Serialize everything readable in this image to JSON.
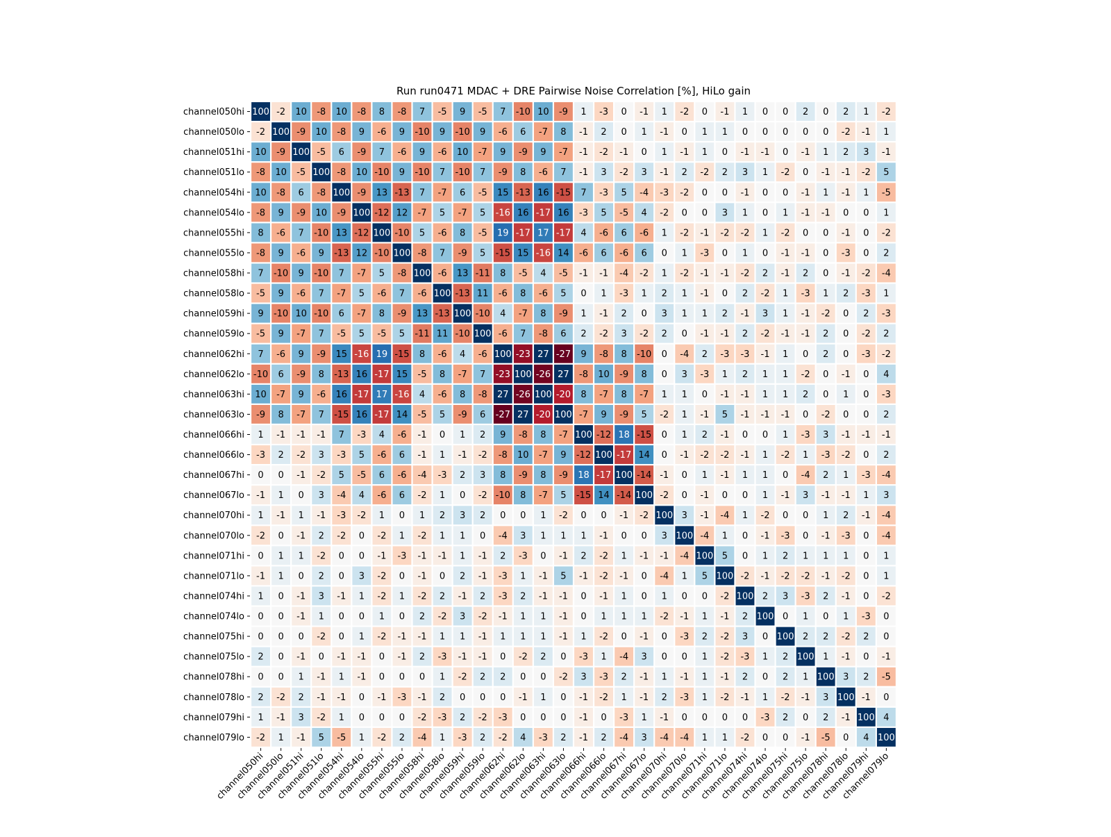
{
  "chart_data": {
    "type": "heatmap",
    "title": "Run run0471 MDAC + DRE Pairwise Noise Correlation [%], HiLo gain",
    "xlabel": "",
    "ylabel": "",
    "colormap": "RdBu",
    "value_range": [
      -27,
      27
    ],
    "legend": "none",
    "labels": [
      "channel050hi",
      "channel050lo",
      "channel051hi",
      "channel051lo",
      "channel054hi",
      "channel054lo",
      "channel055hi",
      "channel055lo",
      "channel058hi",
      "channel058lo",
      "channel059hi",
      "channel059lo",
      "channel062hi",
      "channel062lo",
      "channel063hi",
      "channel063lo",
      "channel066hi",
      "channel066lo",
      "channel067hi",
      "channel067lo",
      "channel070hi",
      "channel070lo",
      "channel071hi",
      "channel071lo",
      "channel074hi",
      "channel074lo",
      "channel075hi",
      "channel075lo",
      "channel078hi",
      "channel078lo",
      "channel079hi",
      "channel079lo"
    ],
    "values": [
      [
        100,
        -2,
        10,
        -8,
        10,
        -8,
        8,
        -8,
        7,
        -5,
        9,
        -5,
        7,
        -10,
        10,
        -9,
        1,
        -3,
        0,
        -1,
        1,
        -2,
        0,
        -1,
        1,
        0,
        0,
        2,
        0,
        2,
        1,
        -2
      ],
      [
        -2,
        100,
        -9,
        10,
        -8,
        9,
        -6,
        9,
        -10,
        9,
        -10,
        9,
        -6,
        6,
        -7,
        8,
        -1,
        2,
        0,
        1,
        -1,
        0,
        1,
        1,
        0,
        0,
        0,
        0,
        0,
        -2,
        -1,
        1
      ],
      [
        10,
        -9,
        100,
        -5,
        6,
        -9,
        7,
        -6,
        9,
        -6,
        10,
        -7,
        9,
        -9,
        9,
        -7,
        -1,
        -2,
        -1,
        0,
        1,
        -1,
        1,
        0,
        -1,
        -1,
        0,
        -1,
        1,
        2,
        3,
        -1
      ],
      [
        -8,
        10,
        -5,
        100,
        -8,
        10,
        -10,
        9,
        -10,
        7,
        -10,
        7,
        -9,
        8,
        -6,
        7,
        -1,
        3,
        -2,
        3,
        -1,
        2,
        -2,
        2,
        3,
        1,
        -2,
        0,
        -1,
        -1,
        -2,
        5
      ],
      [
        10,
        -8,
        6,
        -8,
        100,
        -9,
        13,
        -13,
        7,
        -7,
        6,
        -5,
        15,
        -13,
        16,
        -15,
        7,
        -3,
        5,
        -4,
        -3,
        -2,
        0,
        0,
        -1,
        0,
        0,
        -1,
        1,
        -1,
        1,
        -5
      ],
      [
        -8,
        9,
        -9,
        10,
        -9,
        100,
        -12,
        12,
        -7,
        5,
        -7,
        5,
        -16,
        16,
        -17,
        16,
        -3,
        5,
        -5,
        4,
        -2,
        0,
        0,
        3,
        1,
        0,
        1,
        -1,
        -1,
        0,
        0,
        1
      ],
      [
        8,
        -6,
        7,
        -10,
        13,
        -12,
        100,
        -10,
        5,
        -6,
        8,
        -5,
        19,
        -17,
        17,
        -17,
        4,
        -6,
        6,
        -6,
        1,
        -2,
        -1,
        -2,
        -2,
        1,
        -2,
        0,
        0,
        -1,
        0,
        -2
      ],
      [
        -8,
        9,
        -6,
        9,
        -13,
        12,
        -10,
        100,
        -8,
        7,
        -9,
        5,
        -15,
        15,
        -16,
        14,
        -6,
        6,
        -6,
        6,
        0,
        1,
        -3,
        0,
        1,
        0,
        -1,
        -1,
        0,
        -3,
        0,
        2
      ],
      [
        7,
        -10,
        9,
        -10,
        7,
        -7,
        5,
        -8,
        100,
        -6,
        13,
        -11,
        8,
        -5,
        4,
        -5,
        -1,
        -1,
        -4,
        -2,
        1,
        -2,
        -1,
        -1,
        -2,
        2,
        -1,
        2,
        0,
        -1,
        -2,
        -4
      ],
      [
        -5,
        9,
        -6,
        7,
        -7,
        5,
        -6,
        7,
        -6,
        100,
        -13,
        11,
        -6,
        8,
        -6,
        5,
        0,
        1,
        -3,
        1,
        2,
        1,
        -1,
        0,
        2,
        -2,
        1,
        -3,
        1,
        2,
        -3,
        1
      ],
      [
        9,
        -10,
        10,
        -10,
        6,
        -7,
        8,
        -9,
        13,
        -13,
        100,
        -10,
        4,
        -7,
        8,
        -9,
        1,
        -1,
        2,
        0,
        3,
        1,
        1,
        2,
        -1,
        3,
        1,
        -1,
        -2,
        0,
        2,
        -3
      ],
      [
        -5,
        9,
        -7,
        7,
        -5,
        5,
        -5,
        5,
        -11,
        11,
        -10,
        100,
        -6,
        7,
        -8,
        6,
        2,
        -2,
        3,
        -2,
        2,
        0,
        -1,
        -1,
        2,
        -2,
        -1,
        -1,
        2,
        0,
        -2,
        2
      ],
      [
        7,
        -6,
        9,
        -9,
        15,
        -16,
        19,
        -15,
        8,
        -6,
        4,
        -6,
        100,
        -23,
        27,
        -27,
        9,
        -8,
        8,
        -10,
        0,
        -4,
        2,
        -3,
        -3,
        -1,
        1,
        0,
        2,
        0,
        -3,
        -2
      ],
      [
        -10,
        6,
        -9,
        8,
        -13,
        16,
        -17,
        15,
        -5,
        8,
        -7,
        7,
        -23,
        100,
        -26,
        27,
        -8,
        10,
        -9,
        8,
        0,
        3,
        -3,
        1,
        2,
        1,
        1,
        -2,
        0,
        -1,
        0,
        4
      ],
      [
        10,
        -7,
        9,
        -6,
        16,
        -17,
        17,
        -16,
        4,
        -6,
        8,
        -8,
        27,
        -26,
        100,
        -20,
        8,
        -7,
        8,
        -7,
        1,
        1,
        0,
        -1,
        -1,
        1,
        1,
        2,
        0,
        1,
        0,
        -3
      ],
      [
        -9,
        8,
        -7,
        7,
        -15,
        16,
        -17,
        14,
        -5,
        5,
        -9,
        6,
        -27,
        27,
        -20,
        100,
        -7,
        9,
        -9,
        5,
        -2,
        1,
        -1,
        5,
        -1,
        -1,
        -1,
        0,
        -2,
        0,
        0,
        2
      ],
      [
        1,
        -1,
        -1,
        -1,
        7,
        -3,
        4,
        -6,
        -1,
        0,
        1,
        2,
        9,
        -8,
        8,
        -7,
        100,
        -12,
        18,
        -15,
        0,
        1,
        2,
        -1,
        0,
        0,
        1,
        -3,
        3,
        -1,
        -1,
        -1
      ],
      [
        -3,
        2,
        -2,
        3,
        -3,
        5,
        -6,
        6,
        -1,
        1,
        -1,
        -2,
        -8,
        10,
        -7,
        9,
        -12,
        100,
        -17,
        14,
        0,
        -1,
        -2,
        -2,
        -1,
        1,
        -2,
        1,
        -3,
        -2,
        0,
        2
      ],
      [
        0,
        0,
        -1,
        -2,
        5,
        -5,
        6,
        -6,
        -4,
        -3,
        2,
        3,
        8,
        -9,
        8,
        -9,
        18,
        -17,
        100,
        -14,
        -1,
        0,
        1,
        -1,
        1,
        1,
        0,
        -4,
        2,
        1,
        -3,
        -4
      ],
      [
        -1,
        1,
        0,
        3,
        -4,
        4,
        -6,
        6,
        -2,
        1,
        0,
        -2,
        -10,
        8,
        -7,
        5,
        -15,
        14,
        -14,
        100,
        -2,
        0,
        -1,
        0,
        0,
        1,
        -1,
        3,
        -1,
        -1,
        1,
        3
      ],
      [
        1,
        -1,
        1,
        -1,
        -3,
        -2,
        1,
        0,
        1,
        2,
        3,
        2,
        0,
        0,
        1,
        -2,
        0,
        0,
        -1,
        -2,
        100,
        3,
        -1,
        -4,
        1,
        -2,
        0,
        0,
        1,
        2,
        -1,
        -4
      ],
      [
        -2,
        0,
        -1,
        2,
        -2,
        0,
        -2,
        1,
        -2,
        1,
        1,
        0,
        -4,
        3,
        1,
        1,
        1,
        -1,
        0,
        0,
        3,
        100,
        -4,
        1,
        0,
        -1,
        -3,
        0,
        -1,
        -3,
        0,
        -4
      ],
      [
        0,
        1,
        1,
        -2,
        0,
        0,
        -1,
        -3,
        -1,
        -1,
        1,
        -1,
        2,
        -3,
        0,
        -1,
        2,
        -2,
        1,
        -1,
        -1,
        -4,
        100,
        5,
        0,
        1,
        2,
        1,
        1,
        1,
        0,
        1
      ],
      [
        -1,
        1,
        0,
        2,
        0,
        3,
        -2,
        0,
        -1,
        0,
        2,
        -1,
        -3,
        1,
        -1,
        5,
        -1,
        -2,
        -1,
        0,
        -4,
        1,
        5,
        100,
        -2,
        -1,
        -2,
        -2,
        -1,
        -2,
        0,
        1
      ],
      [
        1,
        0,
        -1,
        3,
        -1,
        1,
        -2,
        1,
        -2,
        2,
        -1,
        2,
        -3,
        2,
        -1,
        -1,
        0,
        -1,
        1,
        0,
        1,
        0,
        0,
        -2,
        100,
        2,
        3,
        -3,
        2,
        -1,
        0,
        -2
      ],
      [
        0,
        0,
        -1,
        1,
        0,
        0,
        1,
        0,
        2,
        -2,
        3,
        -2,
        -1,
        1,
        1,
        -1,
        0,
        1,
        1,
        1,
        -2,
        -1,
        1,
        -1,
        2,
        100,
        0,
        1,
        0,
        1,
        -3,
        0
      ],
      [
        0,
        0,
        0,
        -2,
        0,
        1,
        -2,
        -1,
        -1,
        1,
        1,
        -1,
        1,
        1,
        1,
        -1,
        1,
        -2,
        0,
        -1,
        0,
        -3,
        2,
        -2,
        3,
        0,
        100,
        2,
        2,
        -2,
        2,
        0
      ],
      [
        2,
        0,
        -1,
        0,
        -1,
        -1,
        0,
        -1,
        2,
        -3,
        -1,
        -1,
        0,
        -2,
        2,
        0,
        -3,
        1,
        -4,
        3,
        0,
        0,
        1,
        -2,
        -3,
        1,
        2,
        100,
        1,
        -1,
        0,
        -1
      ],
      [
        0,
        0,
        1,
        -1,
        1,
        -1,
        0,
        0,
        0,
        1,
        -2,
        2,
        2,
        0,
        0,
        -2,
        3,
        -3,
        2,
        -1,
        1,
        -1,
        1,
        -1,
        2,
        0,
        2,
        1,
        100,
        3,
        2,
        -5
      ],
      [
        2,
        -2,
        2,
        -1,
        -1,
        0,
        -1,
        -3,
        -1,
        2,
        0,
        0,
        0,
        -1,
        1,
        0,
        -1,
        -2,
        1,
        -1,
        2,
        -3,
        1,
        -2,
        -1,
        1,
        -2,
        -1,
        3,
        100,
        -1,
        0
      ],
      [
        1,
        -1,
        3,
        -2,
        1,
        0,
        0,
        0,
        -2,
        -3,
        2,
        -2,
        -3,
        0,
        0,
        0,
        -1,
        0,
        -3,
        1,
        -1,
        0,
        0,
        0,
        0,
        -3,
        2,
        0,
        2,
        -1,
        100,
        4
      ],
      [
        -2,
        1,
        -1,
        5,
        -5,
        1,
        -2,
        2,
        -4,
        1,
        -3,
        2,
        -2,
        4,
        -3,
        2,
        -1,
        2,
        -4,
        3,
        -4,
        -4,
        1,
        1,
        -2,
        0,
        0,
        -1,
        -5,
        0,
        4,
        100
      ]
    ]
  }
}
